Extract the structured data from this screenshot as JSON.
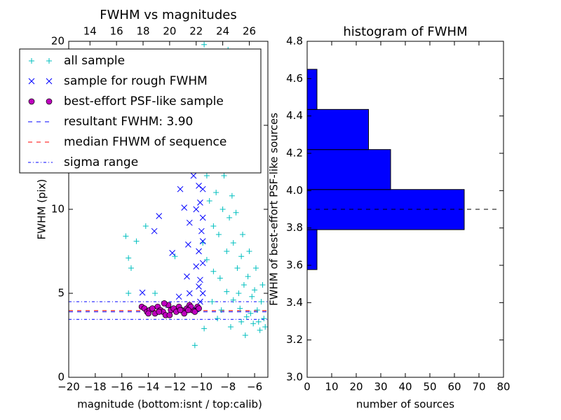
{
  "chart_data": [
    {
      "type": "scatter",
      "title": "FWHM vs magnitudes",
      "x_label": "magnitude (bottom:isnt / top:calib)",
      "y_label": "FWHM (pix)",
      "xlim": [
        -20,
        -5
      ],
      "ylim": [
        0,
        20
      ],
      "xticks": [
        {
          "value": -20,
          "label": "−20"
        },
        {
          "value": -18,
          "label": "−18"
        },
        {
          "value": -16,
          "label": "−16"
        },
        {
          "value": -14,
          "label": "−14"
        },
        {
          "value": -12,
          "label": "−12"
        },
        {
          "value": -10,
          "label": "−10"
        },
        {
          "value": -8,
          "label": "−8"
        },
        {
          "value": -6,
          "label": "−6"
        }
      ],
      "yticks": [
        0,
        5,
        10,
        15,
        20
      ],
      "x2lim": [
        12.4,
        27.4
      ],
      "x2ticks": [
        14,
        16,
        18,
        20,
        22,
        24,
        26
      ],
      "series": [
        {
          "name": "all sample",
          "color": "#00bfbf",
          "marker": "plus",
          "x": [
            -15.7,
            -15.5,
            -15.3,
            -14.9,
            -14.2,
            -13.5,
            -12.0,
            -15.5,
            -9.8,
            -9.5,
            -9.2,
            -9.0,
            -8.8,
            -8.5,
            -8.2,
            -8.0,
            -7.8,
            -7.5,
            -7.2,
            -9.6,
            -9.4,
            -9.1,
            -8.9,
            -8.7,
            -8.4,
            -8.1,
            -7.9,
            -7.6,
            -7.3,
            -7.0,
            -6.8,
            -6.5,
            -6.2,
            -6.0,
            -5.8,
            -5.5,
            -5.3,
            -5.2,
            -5.6,
            -6.1,
            -6.6,
            -7.1,
            -7.6,
            -8.1,
            -8.6,
            -9.1,
            -9.6,
            -9.9,
            -10.0,
            -9.7,
            -8.3,
            -7.7,
            -7.4,
            -6.9,
            -6.4,
            -5.9,
            -5.4,
            -6.3,
            -7.0,
            -7.8,
            -8.5,
            -9.2,
            -9.8,
            -10.5,
            -6.7,
            -8.8,
            -5.7,
            -7.2
          ],
          "y": [
            8.4,
            7.1,
            6.5,
            8.1,
            9.0,
            5.0,
            7.2,
            5.0,
            19.8,
            17.5,
            15.0,
            13.5,
            18.0,
            16.2,
            14.8,
            19.5,
            12.5,
            17.0,
            13.0,
            12.0,
            10.5,
            9.0,
            11.0,
            8.5,
            10.0,
            7.5,
            9.5,
            8.0,
            6.5,
            7.2,
            5.5,
            6.0,
            4.8,
            5.2,
            4.0,
            4.5,
            3.5,
            3.0,
            2.8,
            3.2,
            3.6,
            4.1,
            4.6,
            5.1,
            5.9,
            6.3,
            7.0,
            8.0,
            14.0,
            16.0,
            12.0,
            10.8,
            9.8,
            8.5,
            7.5,
            6.5,
            5.5,
            3.8,
            3.3,
            3.0,
            4.0,
            4.5,
            2.9,
            1.9,
            2.5,
            3.5,
            3.3,
            5.0
          ]
        },
        {
          "name": "sample for rough FWHM",
          "color": "#0000ff",
          "marker": "x",
          "x": [
            -14.45,
            -13.55,
            -13.2,
            -11.6,
            -12.2,
            -10.9,
            -11.3,
            -11.0,
            -11.1,
            -10.9,
            -10.6,
            -10.2,
            -10.1,
            -10.0,
            -10.2,
            -10.4,
            -10.1,
            -10.1,
            -10.5,
            -10.2,
            -9.9,
            -9.9,
            -9.9,
            -9.9,
            -9.9,
            -10.4,
            -12.5,
            -11.7,
            -10.1
          ],
          "y": [
            5.04,
            8.7,
            9.6,
            11.2,
            7.4,
            9.2,
            10.1,
            7.9,
            6.0,
            5.0,
            12.0,
            11.4,
            10.4,
            8.7,
            7.5,
            6.6,
            5.8,
            4.5,
            4.1,
            5.4,
            11.2,
            9.5,
            8.1,
            6.8,
            5.0,
            10.0,
            4.3,
            4.8,
            12.5
          ]
        },
        {
          "name": "best-effort PSF-like sample",
          "color": "#bf00bf",
          "marker": "circle",
          "x": [
            -14.5,
            -14.3,
            -14.1,
            -13.9,
            -13.7,
            -13.5,
            -13.3,
            -13.1,
            -12.9,
            -12.7,
            -12.5,
            -12.3,
            -12.1,
            -11.9,
            -11.7,
            -11.5,
            -11.3,
            -11.1,
            -10.9,
            -10.7,
            -10.5,
            -10.3,
            -10.2,
            -12.8,
            -13.2,
            -11.6,
            -10.8,
            -14.0,
            -12.4,
            -11.0
          ],
          "y": [
            4.2,
            4.1,
            3.9,
            4.0,
            4.1,
            3.8,
            4.2,
            4.0,
            3.9,
            3.7,
            4.3,
            4.0,
            4.1,
            3.9,
            4.2,
            4.0,
            3.8,
            4.1,
            4.3,
            4.0,
            3.9,
            4.2,
            4.1,
            4.4,
            3.9,
            4.0,
            4.2,
            3.8,
            3.7,
            4.0
          ]
        }
      ],
      "hlines": [
        {
          "name": "resultant FWHM: 3.90",
          "color": "#0000ff",
          "style": "dashed",
          "values": [
            3.9
          ]
        },
        {
          "name": "median FHWM of sequence",
          "color": "#ff0000",
          "style": "dashed",
          "values": [
            3.97
          ]
        },
        {
          "name": "sigma range",
          "color": "#0000ff",
          "style": "dashdot",
          "values": [
            3.45,
            4.5
          ]
        }
      ]
    },
    {
      "type": "histogram",
      "title": "histogram of FWHM",
      "orientation": "horizontal",
      "x_label": "number of sources",
      "y_label": "FWHM of best-effort PSF-like sources",
      "bins": [
        3.577,
        3.791,
        4.006,
        4.22,
        4.435,
        4.65
      ],
      "counts": [
        4,
        64,
        34,
        25,
        4
      ],
      "color": "#0000ff",
      "xlim": [
        0,
        80
      ],
      "xticks": [
        0,
        10,
        20,
        30,
        40,
        50,
        60,
        70,
        80
      ],
      "ylim": [
        3.0,
        4.8
      ],
      "yticks": [
        {
          "value": 3.0,
          "label": "3.0"
        },
        {
          "value": 3.2,
          "label": "3.2"
        },
        {
          "value": 3.4,
          "label": "3.4"
        },
        {
          "value": 3.6,
          "label": "3.6"
        },
        {
          "value": 3.8,
          "label": "3.8"
        },
        {
          "value": 4.0,
          "label": "4.0"
        },
        {
          "value": 4.2,
          "label": "4.2"
        },
        {
          "value": 4.4,
          "label": "4.4"
        },
        {
          "value": 4.6,
          "label": "4.6"
        },
        {
          "value": 4.8,
          "label": "4.8"
        }
      ],
      "reference_line": 3.9
    }
  ]
}
